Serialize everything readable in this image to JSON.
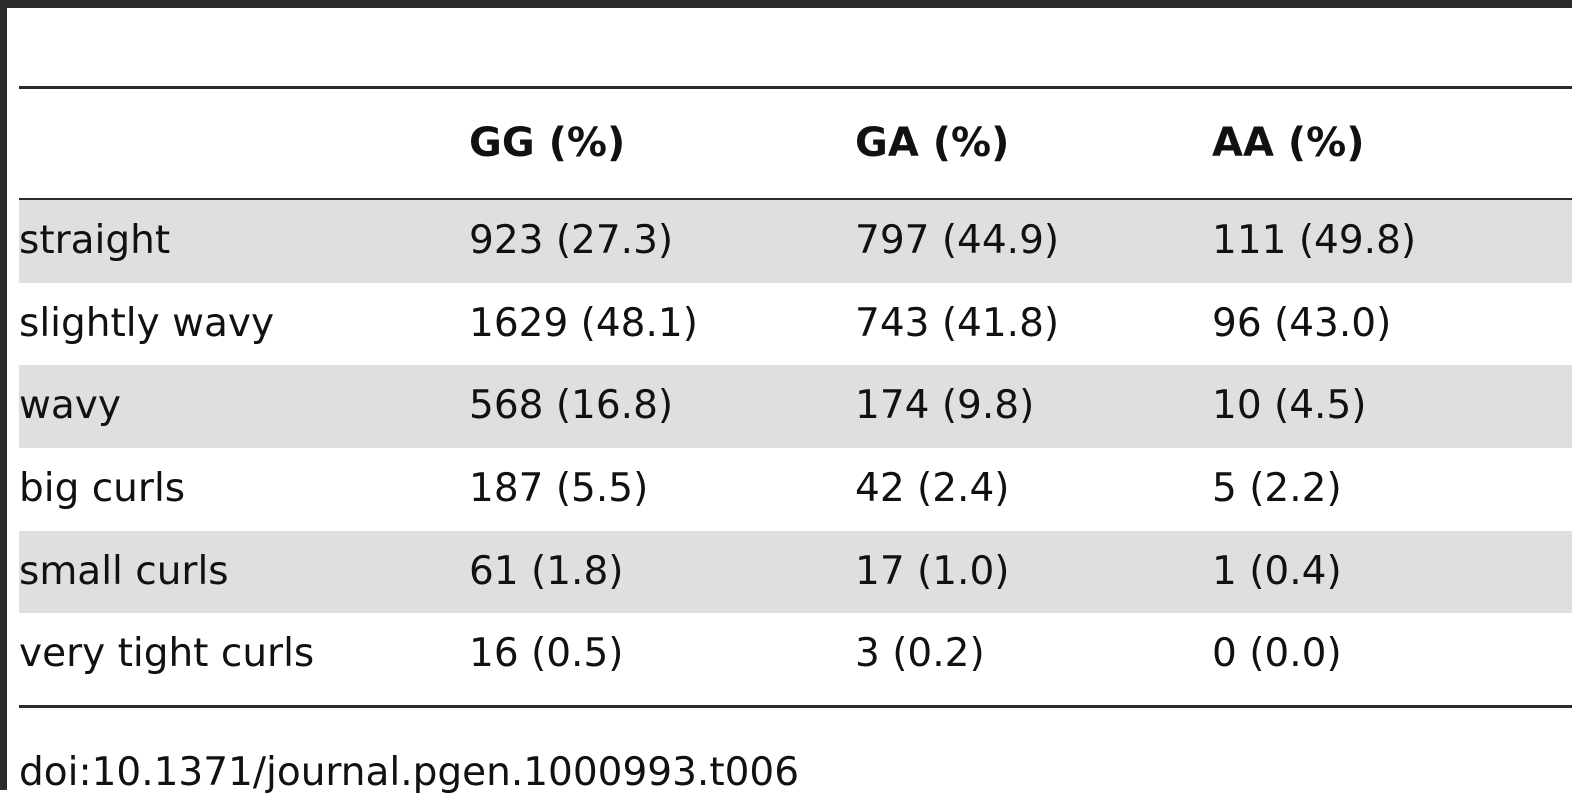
{
  "table": {
    "headers": [
      "",
      "GG (%)",
      "GA (%)",
      "AA (%)"
    ],
    "rows": [
      [
        "straight",
        "923 (27.3)",
        "797 (44.9)",
        "111 (49.8)"
      ],
      [
        "slightly wavy",
        "1629 (48.1)",
        "743 (41.8)",
        "96 (43.0)"
      ],
      [
        "wavy",
        "568 (16.8)",
        "174 (9.8)",
        "10 (4.5)"
      ],
      [
        "big curls",
        "187 (5.5)",
        "42 (2.4)",
        "5 (2.2)"
      ],
      [
        "small curls",
        "61 (1.8)",
        "17 (1.0)",
        "1 (0.4)"
      ],
      [
        "very tight curls",
        "16 (0.5)",
        "3 (0.2)",
        "0 (0.0)"
      ]
    ]
  },
  "doi": "doi:10.1371/journal.pgen.1000993.t006"
}
